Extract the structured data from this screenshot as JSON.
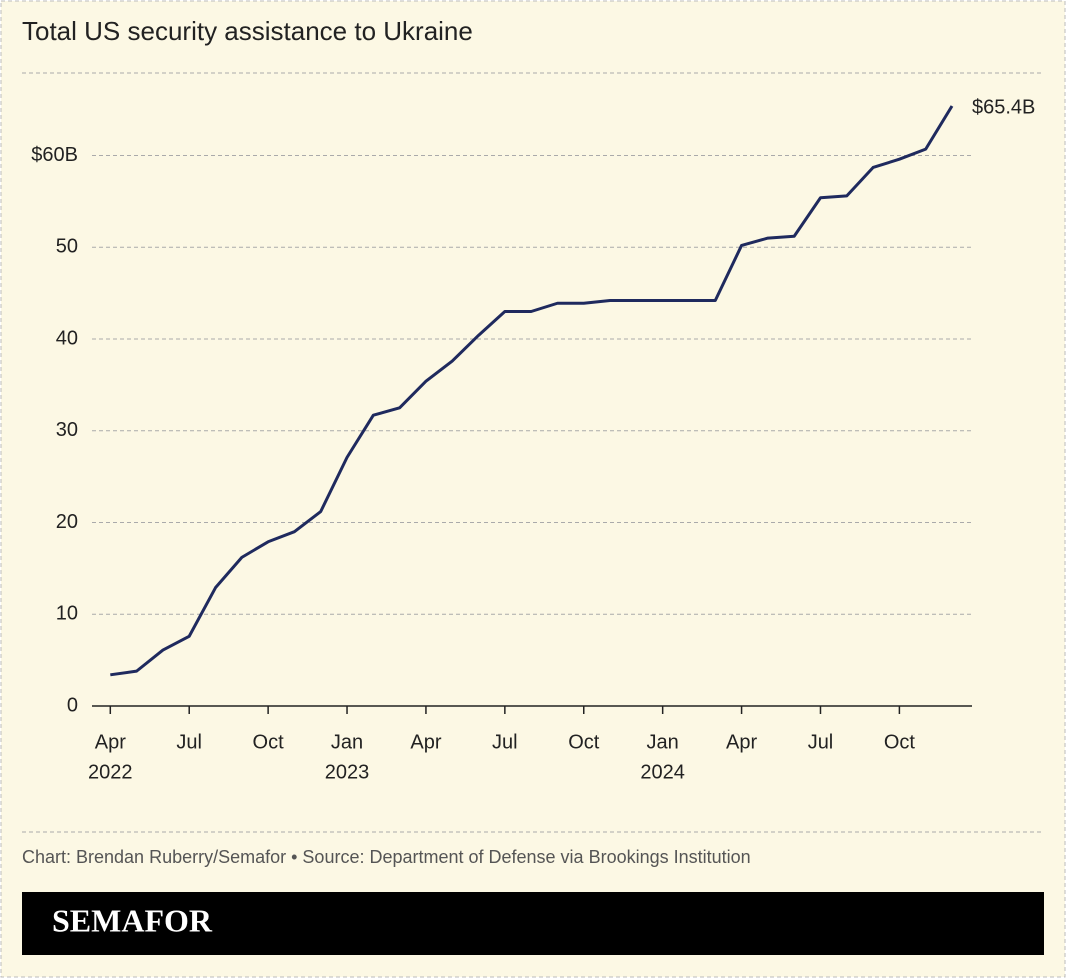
{
  "chart_data": {
    "type": "line",
    "title": "Total US security assistance to Ukraine",
    "x": [
      "2022-04",
      "2022-05",
      "2022-06",
      "2022-07",
      "2022-08",
      "2022-09",
      "2022-10",
      "2022-11",
      "2022-12",
      "2023-01",
      "2023-02",
      "2023-03",
      "2023-04",
      "2023-05",
      "2023-06",
      "2023-07",
      "2023-08",
      "2023-09",
      "2023-10",
      "2023-11",
      "2023-12",
      "2024-01",
      "2024-02",
      "2024-03",
      "2024-04",
      "2024-05",
      "2024-06",
      "2024-07",
      "2024-08",
      "2024-09",
      "2024-10",
      "2024-11",
      "2024-12"
    ],
    "series": [
      {
        "name": "Total US security assistance",
        "color": "#1f2a5e",
        "values": [
          3.4,
          3.8,
          6.1,
          7.6,
          12.9,
          16.2,
          17.9,
          19.0,
          21.2,
          27.1,
          31.7,
          32.5,
          35.4,
          37.6,
          40.4,
          43.0,
          43.0,
          43.9,
          43.9,
          44.2,
          44.2,
          44.2,
          44.2,
          44.2,
          50.2,
          51.0,
          51.2,
          55.4,
          55.6,
          58.7,
          59.6,
          60.7,
          65.4
        ],
        "value_labels": [
          null,
          null,
          null,
          null,
          null,
          null,
          null,
          null,
          null,
          null,
          null,
          null,
          null,
          null,
          null,
          null,
          null,
          null,
          null,
          null,
          null,
          null,
          null,
          null,
          null,
          null,
          null,
          null,
          null,
          null,
          null,
          null,
          "$65.4B"
        ]
      }
    ],
    "xlim": [
      "2022-03",
      "2024-12"
    ],
    "xticks": [
      {
        "value": "2022-04",
        "label": "Apr"
      },
      {
        "value": "2022-07",
        "label": "Jul"
      },
      {
        "value": "2022-10",
        "label": "Oct"
      },
      {
        "value": "2023-01",
        "label": "Jan"
      },
      {
        "value": "2023-04",
        "label": "Apr"
      },
      {
        "value": "2023-07",
        "label": "Jul"
      },
      {
        "value": "2023-10",
        "label": "Oct"
      },
      {
        "value": "2024-01",
        "label": "Jan"
      },
      {
        "value": "2024-04",
        "label": "Apr"
      },
      {
        "value": "2024-07",
        "label": "Jul"
      },
      {
        "value": "2024-10",
        "label": "Oct"
      }
    ],
    "xtick_years": [
      {
        "value": "2022-04",
        "label": "2022"
      },
      {
        "value": "2023-01",
        "label": "2023"
      },
      {
        "value": "2024-01",
        "label": "2024"
      }
    ],
    "ylim": [
      0,
      65.4
    ],
    "yticks": [
      0,
      10,
      20,
      30,
      40,
      50,
      {
        "value": 60,
        "label": "$60B"
      }
    ],
    "grid": true,
    "source": "Chart: Brendan Ruberry/Semafor • Source: Department of Defense via Brookings Institution",
    "brand": "SEMAFOR"
  }
}
